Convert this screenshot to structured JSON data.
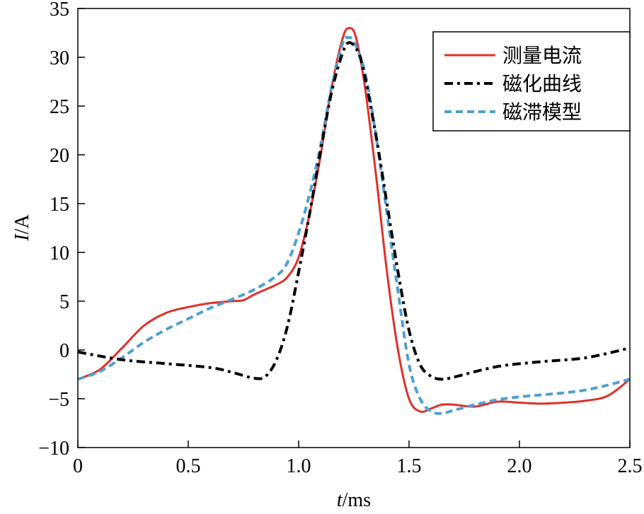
{
  "chart_data": {
    "type": "line",
    "title": "",
    "xlabel": {
      "italic": "t",
      "unit": "/ms"
    },
    "ylabel": {
      "italic": "I",
      "unit": "/A"
    },
    "xlim": [
      0,
      2.5
    ],
    "ylim": [
      -10,
      35
    ],
    "xticks": [
      0,
      0.5,
      1.0,
      1.5,
      2.0,
      2.5
    ],
    "xtick_labels": [
      "0",
      "0.5",
      "1.0",
      "1.5",
      "2.0",
      "2.5"
    ],
    "yticks": [
      -10,
      -5,
      0,
      5,
      10,
      15,
      20,
      25,
      30,
      35
    ],
    "ytick_labels": [
      "−10",
      "−5",
      "0",
      "5",
      "10",
      "15",
      "20",
      "25",
      "30",
      "35"
    ],
    "grid": false,
    "legend_position": "top-right",
    "series": [
      {
        "name": "测量电流",
        "color": "#e0302a",
        "style": "solid",
        "x": [
          0,
          0.1,
          0.2,
          0.3,
          0.4,
          0.5,
          0.6,
          0.7,
          0.75,
          0.8,
          0.9,
          0.95,
          1.0,
          1.05,
          1.1,
          1.15,
          1.2,
          1.23,
          1.26,
          1.3,
          1.35,
          1.4,
          1.45,
          1.5,
          1.55,
          1.6,
          1.65,
          1.7,
          1.8,
          1.9,
          2.0,
          2.1,
          2.2,
          2.3,
          2.4,
          2.5
        ],
        "y": [
          -3,
          -2,
          0.2,
          2.5,
          3.8,
          4.4,
          4.8,
          5.0,
          5.1,
          5.7,
          6.7,
          7.5,
          9.5,
          14,
          20,
          27,
          32,
          33,
          32,
          27,
          18,
          8,
          0,
          -5,
          -6.3,
          -6,
          -5.6,
          -5.6,
          -5.8,
          -5.3,
          -5.4,
          -5.5,
          -5.4,
          -5.2,
          -4.7,
          -3
        ]
      },
      {
        "name": "磁化曲线",
        "color": "#000000",
        "style": "dashdot",
        "x": [
          0,
          0.2,
          0.4,
          0.6,
          0.7,
          0.8,
          0.85,
          0.9,
          0.95,
          1.0,
          1.05,
          1.1,
          1.15,
          1.2,
          1.23,
          1.27,
          1.3,
          1.35,
          1.4,
          1.45,
          1.5,
          1.55,
          1.6,
          1.65,
          1.7,
          1.9,
          2.1,
          2.3,
          2.5
        ],
        "y": [
          -0.2,
          -1.0,
          -1.4,
          -1.8,
          -2.3,
          -2.9,
          -2.7,
          -1,
          2.5,
          8,
          14,
          20.5,
          26.5,
          30.5,
          31.5,
          30.5,
          28,
          22,
          15,
          8,
          2,
          -1.5,
          -2.7,
          -3,
          -2.8,
          -1.7,
          -1.2,
          -0.8,
          0.2
        ]
      },
      {
        "name": "磁滞模型",
        "color": "#4f9fd0",
        "style": "dashed",
        "x": [
          0,
          0.1,
          0.2,
          0.3,
          0.4,
          0.5,
          0.6,
          0.7,
          0.8,
          0.9,
          0.95,
          1.0,
          1.05,
          1.1,
          1.15,
          1.2,
          1.22,
          1.25,
          1.3,
          1.35,
          1.4,
          1.45,
          1.5,
          1.55,
          1.6,
          1.65,
          1.7,
          1.8,
          1.9,
          2.0,
          2.1,
          2.2,
          2.3,
          2.4,
          2.5
        ],
        "y": [
          -3,
          -2.2,
          -0.8,
          0.8,
          2.1,
          3.2,
          4.3,
          5.2,
          6.2,
          7.6,
          9,
          12,
          16,
          21,
          27,
          31.5,
          32,
          31.6,
          28.5,
          22,
          14,
          6,
          -1.5,
          -5,
          -6.3,
          -6.5,
          -6.2,
          -5.6,
          -5.1,
          -4.8,
          -4.6,
          -4.4,
          -4.1,
          -3.6,
          -3
        ]
      }
    ]
  }
}
